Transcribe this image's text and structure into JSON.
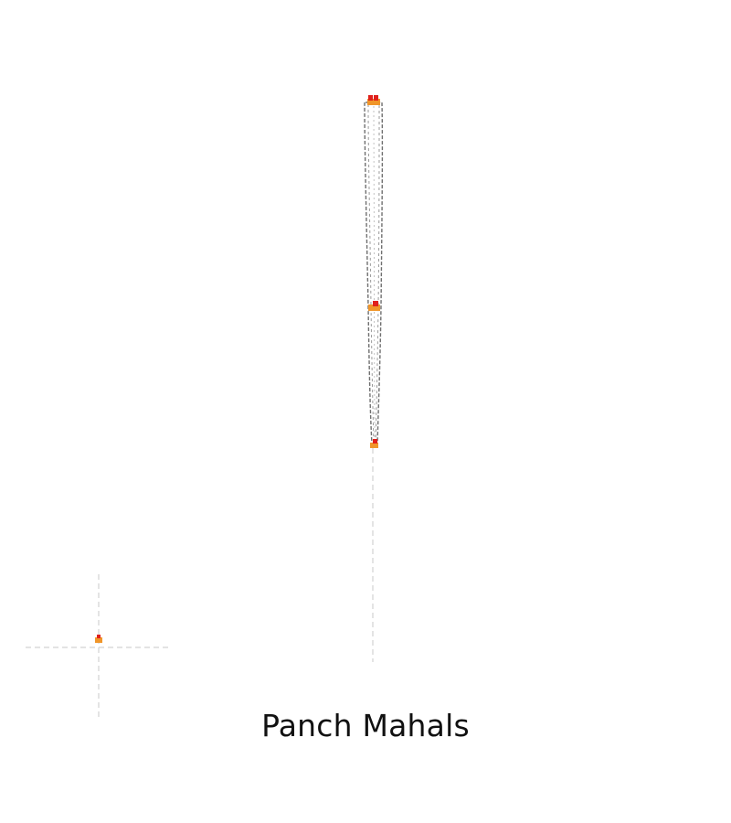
{
  "map": {
    "region_name": "Panch Mahals",
    "colors": {
      "outline": "#7a7a7a",
      "marker_red": "#e0201b",
      "marker_orange": "#f0962a",
      "guide": "#c8c8c8"
    },
    "markers": [
      {
        "id": "top",
        "color": "red"
      },
      {
        "id": "middle",
        "color": "red"
      },
      {
        "id": "bottom",
        "color": "red"
      },
      {
        "id": "inset",
        "color": "orange"
      }
    ]
  }
}
